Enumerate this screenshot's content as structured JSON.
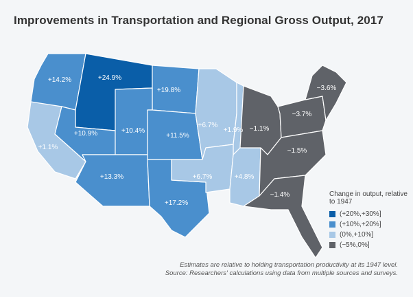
{
  "title": "Improvements in Transportation and Regional Gross Output, 2017",
  "colors": {
    "bin1": "#0a5ea8",
    "bin2": "#4a8fcd",
    "bin3": "#a8c8e6",
    "bin4": "#5f6268"
  },
  "regions": [
    {
      "id": "pacific-northwest",
      "label": "+14.2%",
      "bin": "bin2"
    },
    {
      "id": "montana-wyoming",
      "label": "+24.9%",
      "bin": "bin1"
    },
    {
      "id": "dakotas",
      "label": "+19.8%",
      "bin": "bin2"
    },
    {
      "id": "california",
      "label": "+1.1%",
      "bin": "bin3"
    },
    {
      "id": "nevada-utah",
      "label": "+10.9%",
      "bin": "bin2"
    },
    {
      "id": "colorado-region",
      "label": "+10.4%",
      "bin": "bin2"
    },
    {
      "id": "nebraska-kansas",
      "label": "+11.5%",
      "bin": "bin2"
    },
    {
      "id": "southwest",
      "label": "+13.3%",
      "bin": "bin2"
    },
    {
      "id": "texas-oklahoma",
      "label": "+17.2%",
      "bin": "bin2"
    },
    {
      "id": "upper-midwest",
      "label": "+6.7%",
      "bin": "bin3"
    },
    {
      "id": "illinois-region",
      "label": "+1.9%",
      "bin": "bin3"
    },
    {
      "id": "arkansas-region",
      "label": "+6.7%",
      "bin": "bin3"
    },
    {
      "id": "tennessee-region",
      "label": "+4.8%",
      "bin": "bin3"
    },
    {
      "id": "great-lakes",
      "label": "−1.1%",
      "bin": "bin4"
    },
    {
      "id": "mid-atlantic",
      "label": "−3.7%",
      "bin": "bin4"
    },
    {
      "id": "new-england",
      "label": "−3.6%",
      "bin": "bin4"
    },
    {
      "id": "southeast",
      "label": "−1.5%",
      "bin": "bin4"
    },
    {
      "id": "florida-georgia",
      "label": "−1.4%",
      "bin": "bin4"
    }
  ],
  "legend": {
    "title": "Change in output, relative to 1947",
    "items": [
      {
        "label": "(+20%,+30%]",
        "bin": "bin1"
      },
      {
        "label": "(+10%,+20%]",
        "bin": "bin2"
      },
      {
        "label": "(0%,+10%]",
        "bin": "bin3"
      },
      {
        "label": "(−5%,0%]",
        "bin": "bin4"
      }
    ]
  },
  "notes": {
    "line1": "Estimates are relative to holding transportation productivity at its 1947 level.",
    "line2": "Source: Researchers' calculations using data from multiple sources and surveys."
  }
}
